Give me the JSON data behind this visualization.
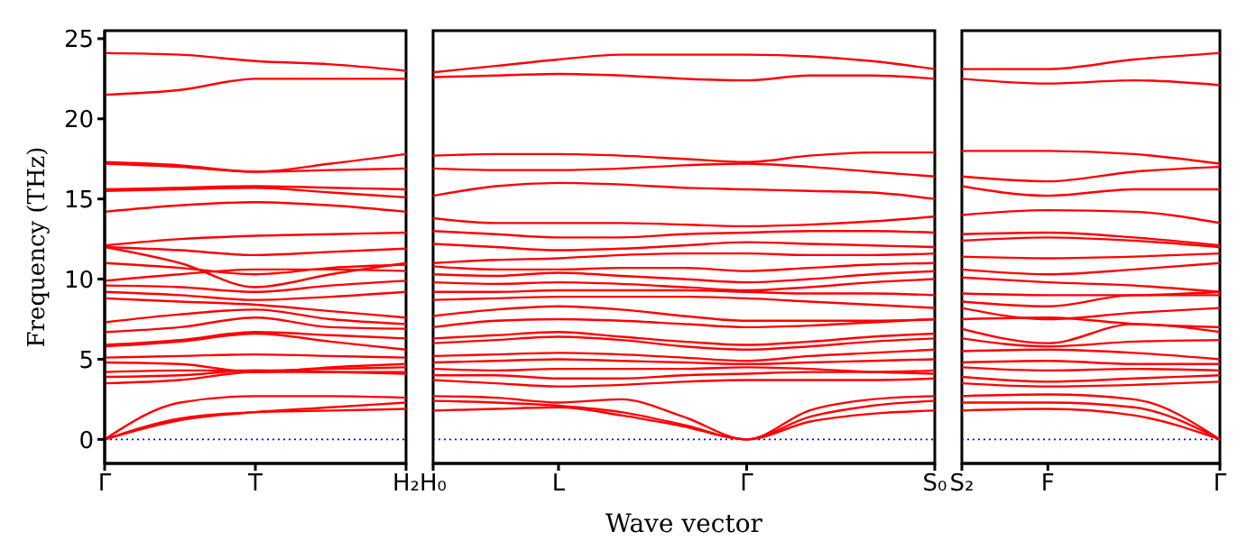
{
  "chart_data": [
    {
      "type": "line",
      "ylabel": "Frequency (THz)",
      "categories": [
        "Γ",
        null,
        "T",
        null,
        "H₂"
      ],
      "ylim": [
        -1.5,
        25.5
      ],
      "yticks": [
        0,
        5,
        10,
        15,
        20,
        25
      ],
      "marker": "none",
      "line_style": "solid",
      "grid": false,
      "legend": false,
      "ref_lines": [
        {
          "axis": "y",
          "value": 0,
          "label": null,
          "color": "#0000ff",
          "line_style": "dotted"
        }
      ],
      "series": [
        {
          "color": "#ff0000",
          "values": [
            24.1,
            24.0,
            23.6,
            23.4,
            23.0
          ]
        },
        {
          "color": "#ff0000",
          "values": [
            21.5,
            21.8,
            22.5,
            22.5,
            22.5
          ]
        },
        {
          "color": "#ff0000",
          "values": [
            17.3,
            17.1,
            16.7,
            17.2,
            17.8
          ]
        },
        {
          "color": "#ff0000",
          "values": [
            17.2,
            17.0,
            16.7,
            16.8,
            16.9
          ]
        },
        {
          "color": "#ff0000",
          "values": [
            15.6,
            15.7,
            15.8,
            15.7,
            15.6
          ]
        },
        {
          "color": "#ff0000",
          "values": [
            15.5,
            15.6,
            15.7,
            15.4,
            15.1
          ]
        },
        {
          "color": "#ff0000",
          "values": [
            14.2,
            14.6,
            14.8,
            14.6,
            14.2
          ]
        },
        {
          "color": "#ff0000",
          "values": [
            12.1,
            12.5,
            12.7,
            12.8,
            12.9
          ]
        },
        {
          "color": "#ff0000",
          "values": [
            12.0,
            11.8,
            11.5,
            11.7,
            11.9
          ]
        },
        {
          "color": "#ff0000",
          "values": [
            12.0,
            11.0,
            9.5,
            10.3,
            11.0
          ]
        },
        {
          "color": "#ff0000",
          "values": [
            11.0,
            10.7,
            10.3,
            10.7,
            10.9
          ]
        },
        {
          "color": "#ff0000",
          "values": [
            9.9,
            10.3,
            10.6,
            10.6,
            10.5
          ]
        },
        {
          "color": "#ff0000",
          "values": [
            9.6,
            9.5,
            9.2,
            9.6,
            9.9
          ]
        },
        {
          "color": "#ff0000",
          "values": [
            9.2,
            9.0,
            8.7,
            8.9,
            9.2
          ]
        },
        {
          "color": "#ff0000",
          "values": [
            8.8,
            8.6,
            8.4,
            8.0,
            7.6
          ]
        },
        {
          "color": "#ff0000",
          "values": [
            7.3,
            7.8,
            8.1,
            7.5,
            7.2
          ]
        },
        {
          "color": "#ff0000",
          "values": [
            6.7,
            7.0,
            7.6,
            7.0,
            6.9
          ]
        },
        {
          "color": "#ff0000",
          "values": [
            5.9,
            6.2,
            6.7,
            6.5,
            6.3
          ]
        },
        {
          "color": "#ff0000",
          "values": [
            5.8,
            6.1,
            6.6,
            6.1,
            5.6
          ]
        },
        {
          "color": "#ff0000",
          "values": [
            5.1,
            5.2,
            5.3,
            5.2,
            5.1
          ]
        },
        {
          "color": "#ff0000",
          "values": [
            4.8,
            4.7,
            4.2,
            4.5,
            4.7
          ]
        },
        {
          "color": "#ff0000",
          "values": [
            4.2,
            4.3,
            4.3,
            4.4,
            4.5
          ]
        },
        {
          "color": "#ff0000",
          "values": [
            3.9,
            4.0,
            4.3,
            4.2,
            4.1
          ]
        },
        {
          "color": "#ff0000",
          "values": [
            3.5,
            3.7,
            4.2,
            4.2,
            4.2
          ]
        },
        {
          "color": "#ff0000",
          "values": [
            0,
            2.3,
            2.7,
            2.7,
            2.6
          ]
        },
        {
          "color": "#ff0000",
          "values": [
            0,
            1.3,
            1.7,
            1.8,
            1.9
          ]
        },
        {
          "color": "#ff0000",
          "values": [
            0,
            1.2,
            1.7,
            2.0,
            2.3
          ]
        }
      ]
    },
    {
      "type": "line",
      "xlabel": "Wave vector",
      "tick_labels": "x",
      "categories": [
        "H₀",
        null,
        "L",
        null,
        null,
        "Γ",
        null,
        null,
        "S₀"
      ],
      "ylim": [
        -1.5,
        25.5
      ],
      "yticks": [
        0,
        5,
        10,
        15,
        20,
        25
      ],
      "marker": "none",
      "line_style": "solid",
      "grid": false,
      "legend": false,
      "ref_lines": [
        {
          "axis": "y",
          "value": 0,
          "label": null,
          "color": "#0000ff",
          "line_style": "dotted"
        }
      ],
      "series": [
        {
          "color": "#ff0000",
          "values": [
            22.9,
            23.3,
            23.7,
            24.0,
            24.0,
            24.0,
            23.9,
            23.6,
            23.1
          ]
        },
        {
          "color": "#ff0000",
          "values": [
            22.6,
            22.7,
            22.8,
            22.7,
            22.5,
            22.4,
            22.7,
            22.7,
            22.5
          ]
        },
        {
          "color": "#ff0000",
          "values": [
            17.7,
            17.8,
            17.8,
            17.7,
            17.5,
            17.3,
            17.7,
            17.9,
            17.9
          ]
        },
        {
          "color": "#ff0000",
          "values": [
            16.9,
            16.8,
            16.8,
            16.9,
            17.1,
            17.2,
            17.0,
            16.7,
            16.4
          ]
        },
        {
          "color": "#ff0000",
          "values": [
            15.2,
            15.8,
            16.0,
            15.9,
            15.7,
            15.6,
            15.5,
            15.4,
            15.0
          ]
        },
        {
          "color": "#ff0000",
          "values": [
            13.8,
            13.5,
            13.5,
            13.5,
            13.4,
            13.3,
            13.4,
            13.6,
            13.9
          ]
        },
        {
          "color": "#ff0000",
          "values": [
            13.0,
            12.8,
            12.6,
            12.6,
            12.8,
            12.9,
            13.0,
            13.0,
            12.9
          ]
        },
        {
          "color": "#ff0000",
          "values": [
            12.2,
            12.0,
            11.8,
            11.9,
            12.1,
            12.3,
            12.2,
            12.1,
            12.0
          ]
        },
        {
          "color": "#ff0000",
          "values": [
            11.0,
            11.2,
            11.3,
            11.5,
            11.6,
            11.6,
            11.5,
            11.5,
            11.6
          ]
        },
        {
          "color": "#ff0000",
          "values": [
            10.8,
            10.6,
            10.6,
            10.7,
            10.7,
            10.5,
            10.7,
            10.9,
            11.0
          ]
        },
        {
          "color": "#ff0000",
          "values": [
            10.3,
            10.2,
            10.4,
            10.2,
            10.0,
            9.8,
            10.0,
            10.3,
            10.5
          ]
        },
        {
          "color": "#ff0000",
          "values": [
            9.8,
            9.7,
            9.8,
            9.7,
            9.5,
            9.3,
            9.5,
            9.8,
            10.0
          ]
        },
        {
          "color": "#ff0000",
          "values": [
            9.2,
            9.2,
            9.3,
            9.3,
            9.3,
            9.2,
            9.1,
            9.1,
            9.0
          ]
        },
        {
          "color": "#ff0000",
          "values": [
            8.7,
            8.8,
            8.9,
            8.9,
            8.9,
            8.8,
            8.6,
            8.4,
            8.2
          ]
        },
        {
          "color": "#ff0000",
          "values": [
            7.7,
            8.1,
            8.3,
            8.1,
            7.7,
            7.4,
            7.4,
            7.4,
            7.5
          ]
        },
        {
          "color": "#ff0000",
          "values": [
            7.0,
            7.4,
            7.5,
            7.4,
            7.2,
            7.0,
            7.1,
            7.3,
            7.5
          ]
        },
        {
          "color": "#ff0000",
          "values": [
            6.3,
            6.5,
            6.7,
            6.4,
            6.1,
            5.9,
            6.1,
            6.4,
            6.6
          ]
        },
        {
          "color": "#ff0000",
          "values": [
            6.0,
            6.2,
            6.4,
            6.2,
            5.8,
            5.6,
            5.8,
            6.1,
            6.3
          ]
        },
        {
          "color": "#ff0000",
          "values": [
            5.2,
            5.3,
            5.4,
            5.3,
            5.1,
            4.9,
            5.2,
            5.4,
            5.6
          ]
        },
        {
          "color": "#ff0000",
          "values": [
            4.8,
            4.9,
            5.0,
            4.9,
            4.8,
            4.7,
            4.8,
            4.9,
            5.0
          ]
        },
        {
          "color": "#ff0000",
          "values": [
            4.4,
            4.3,
            4.4,
            4.4,
            4.4,
            4.5,
            4.4,
            4.2,
            4.1
          ]
        },
        {
          "color": "#ff0000",
          "values": [
            4.0,
            4.0,
            3.8,
            3.8,
            4.0,
            4.1,
            4.2,
            4.2,
            4.3
          ]
        },
        {
          "color": "#ff0000",
          "values": [
            3.7,
            3.5,
            3.3,
            3.4,
            3.6,
            3.7,
            3.7,
            3.7,
            3.8
          ]
        },
        {
          "color": "#ff0000",
          "values": [
            2.7,
            2.6,
            2.3,
            2.5,
            1.4,
            0,
            1.8,
            2.5,
            2.7
          ]
        },
        {
          "color": "#ff0000",
          "values": [
            2.4,
            2.3,
            2.1,
            1.7,
            0.9,
            0,
            1.4,
            2.1,
            2.4
          ]
        },
        {
          "color": "#ff0000",
          "values": [
            1.8,
            1.9,
            2.0,
            1.5,
            0.8,
            0,
            1.1,
            1.6,
            1.8
          ]
        }
      ]
    },
    {
      "type": "line",
      "tick_labels": "x",
      "categories": [
        "S₂",
        "F",
        null,
        "Γ"
      ],
      "ylim": [
        -1.5,
        25.5
      ],
      "yticks": [
        0,
        5,
        10,
        15,
        20,
        25
      ],
      "marker": "none",
      "line_style": "solid",
      "grid": false,
      "legend": false,
      "ref_lines": [
        {
          "axis": "y",
          "value": 0,
          "label": null,
          "color": "#0000ff",
          "line_style": "dotted"
        }
      ],
      "series": [
        {
          "color": "#ff0000",
          "values": [
            23.1,
            23.1,
            23.7,
            24.1
          ]
        },
        {
          "color": "#ff0000",
          "values": [
            22.5,
            22.2,
            22.4,
            22.1
          ]
        },
        {
          "color": "#ff0000",
          "values": [
            18.0,
            18.0,
            17.8,
            17.2
          ]
        },
        {
          "color": "#ff0000",
          "values": [
            16.4,
            16.1,
            16.7,
            17.0
          ]
        },
        {
          "color": "#ff0000",
          "values": [
            15.8,
            15.2,
            15.6,
            15.6
          ]
        },
        {
          "color": "#ff0000",
          "values": [
            14.0,
            14.3,
            14.2,
            13.5
          ]
        },
        {
          "color": "#ff0000",
          "values": [
            12.8,
            12.9,
            12.6,
            12.1
          ]
        },
        {
          "color": "#ff0000",
          "values": [
            12.4,
            12.6,
            12.4,
            12.0
          ]
        },
        {
          "color": "#ff0000",
          "values": [
            11.4,
            11.3,
            11.4,
            11.6
          ]
        },
        {
          "color": "#ff0000",
          "values": [
            10.6,
            10.3,
            10.6,
            11.0
          ]
        },
        {
          "color": "#ff0000",
          "values": [
            10.1,
            9.8,
            9.6,
            9.2
          ]
        },
        {
          "color": "#ff0000",
          "values": [
            9.1,
            9.0,
            9.0,
            9.2
          ]
        },
        {
          "color": "#ff0000",
          "values": [
            8.6,
            8.3,
            9.0,
            9.0
          ]
        },
        {
          "color": "#ff0000",
          "values": [
            8.2,
            7.5,
            7.9,
            8.2
          ]
        },
        {
          "color": "#ff0000",
          "values": [
            7.5,
            7.6,
            7.2,
            7.0
          ]
        },
        {
          "color": "#ff0000",
          "values": [
            6.9,
            6.0,
            7.2,
            6.7
          ]
        },
        {
          "color": "#ff0000",
          "values": [
            6.3,
            5.8,
            6.1,
            6.2
          ]
        },
        {
          "color": "#ff0000",
          "values": [
            5.5,
            5.6,
            5.4,
            5.0
          ]
        },
        {
          "color": "#ff0000",
          "values": [
            4.8,
            4.9,
            4.7,
            4.7
          ]
        },
        {
          "color": "#ff0000",
          "values": [
            4.5,
            4.3,
            4.4,
            4.3
          ]
        },
        {
          "color": "#ff0000",
          "values": [
            3.9,
            3.6,
            3.8,
            4.0
          ]
        },
        {
          "color": "#ff0000",
          "values": [
            3.5,
            3.3,
            3.4,
            3.6
          ]
        },
        {
          "color": "#ff0000",
          "values": [
            2.7,
            2.8,
            2.5,
            0
          ]
        },
        {
          "color": "#ff0000",
          "values": [
            2.3,
            2.3,
            2.0,
            0
          ]
        },
        {
          "color": "#ff0000",
          "values": [
            1.8,
            1.9,
            1.5,
            0
          ]
        }
      ]
    }
  ]
}
